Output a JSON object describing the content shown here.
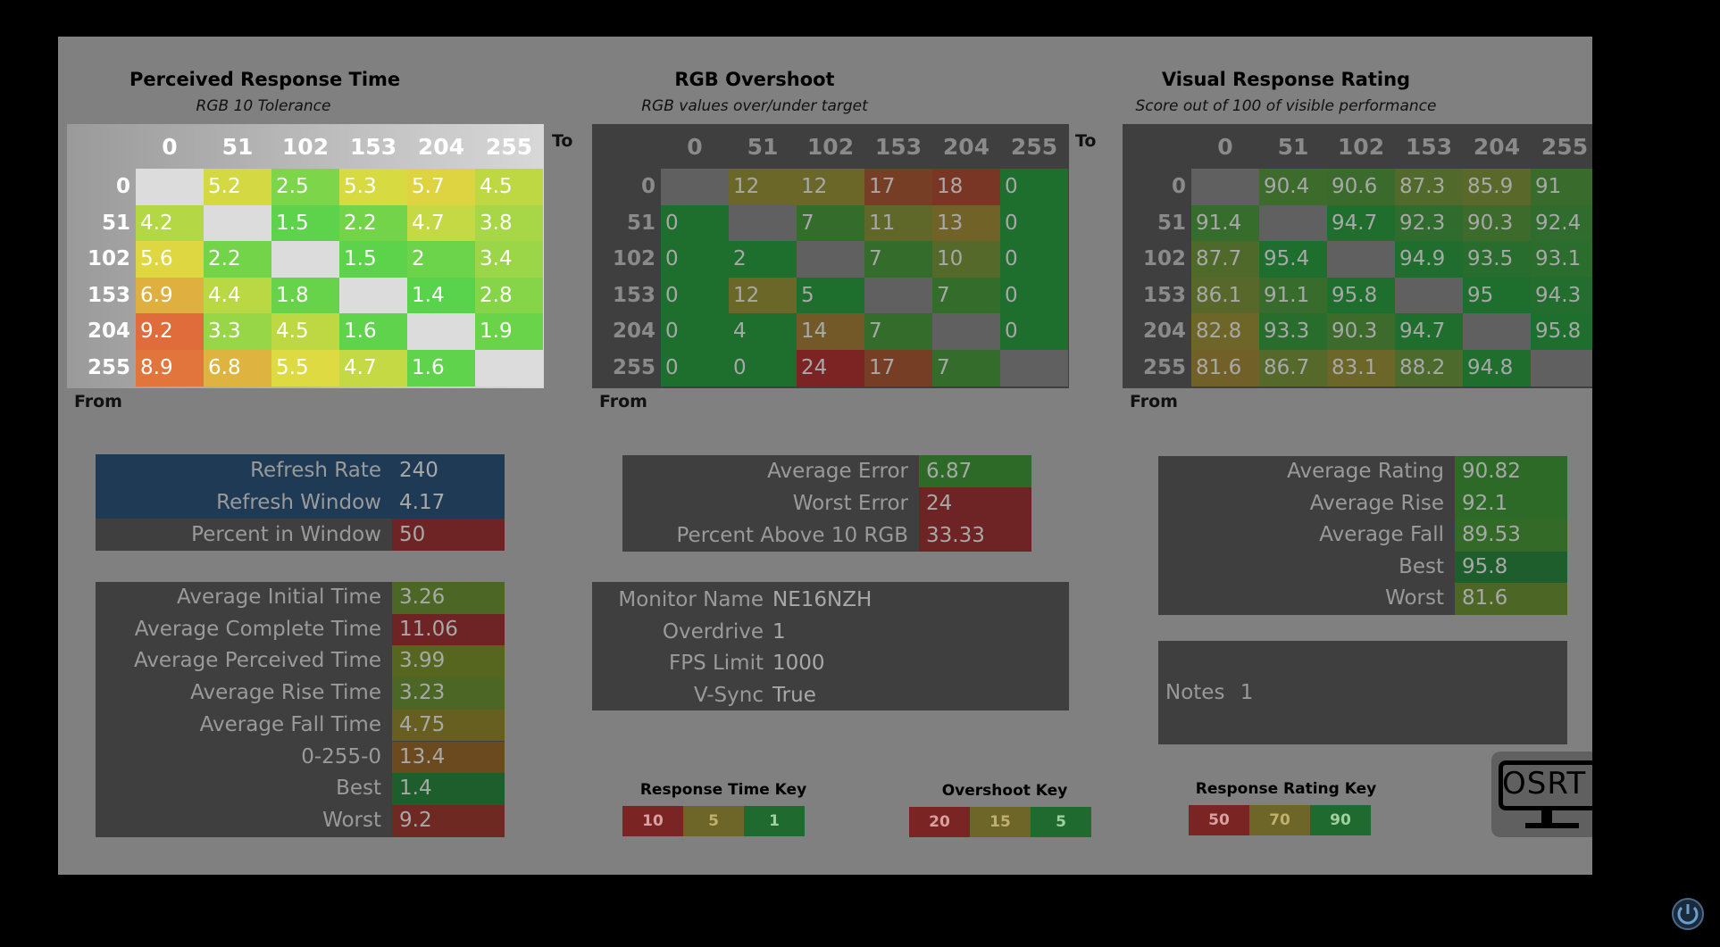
{
  "chart_data": [
    {
      "type": "heatmap",
      "title": "Perceived Response Time",
      "subtitle": "RGB 10 Tolerance",
      "xlabel": "To",
      "ylabel": "From",
      "x": [
        "0",
        "51",
        "102",
        "153",
        "204",
        "255"
      ],
      "y": [
        "0",
        "51",
        "102",
        "153",
        "204",
        "255"
      ],
      "values": [
        [
          null,
          "5.2",
          "2.5",
          "5.3",
          "5.7",
          "4.5"
        ],
        [
          "4.2",
          null,
          "1.5",
          "2.2",
          "4.7",
          "3.8"
        ],
        [
          "5.6",
          "2.2",
          null,
          "1.5",
          "2",
          "3.4"
        ],
        [
          "6.9",
          "4.4",
          "1.8",
          null,
          "1.4",
          "2.8"
        ],
        [
          "9.2",
          "3.3",
          "4.5",
          "1.6",
          null,
          "1.9"
        ],
        [
          "8.9",
          "6.8",
          "5.5",
          "4.7",
          "1.6",
          null
        ]
      ]
    },
    {
      "type": "heatmap",
      "title": "RGB Overshoot",
      "subtitle": "RGB values over/under target",
      "xlabel": "To",
      "ylabel": "From",
      "x": [
        "0",
        "51",
        "102",
        "153",
        "204",
        "255"
      ],
      "y": [
        "0",
        "51",
        "102",
        "153",
        "204",
        "255"
      ],
      "values": [
        [
          null,
          "12",
          "12",
          "17",
          "18",
          "0"
        ],
        [
          "0",
          null,
          "7",
          "11",
          "13",
          "0"
        ],
        [
          "0",
          "2",
          null,
          "7",
          "10",
          "0"
        ],
        [
          "0",
          "12",
          "5",
          null,
          "7",
          "0"
        ],
        [
          "0",
          "4",
          "14",
          "7",
          null,
          "0"
        ],
        [
          "0",
          "0",
          "24",
          "17",
          "7",
          null
        ]
      ]
    },
    {
      "type": "heatmap",
      "title": "Visual Response Rating",
      "subtitle": "Score out of 100 of visible performance",
      "xlabel": "",
      "ylabel": "From",
      "x": [
        "0",
        "51",
        "102",
        "153",
        "204",
        "255"
      ],
      "y": [
        "0",
        "51",
        "102",
        "153",
        "204",
        "255"
      ],
      "values": [
        [
          null,
          "90.4",
          "90.6",
          "87.3",
          "85.9",
          "91"
        ],
        [
          "91.4",
          null,
          "94.7",
          "92.3",
          "90.3",
          "92.4"
        ],
        [
          "87.7",
          "95.4",
          null,
          "94.9",
          "93.5",
          "93.1"
        ],
        [
          "86.1",
          "91.1",
          "95.8",
          null,
          "95",
          "94.3"
        ],
        [
          "82.8",
          "93.3",
          "90.3",
          "94.7",
          null,
          "95.8"
        ],
        [
          "81.6",
          "86.7",
          "83.1",
          "88.2",
          "94.8",
          null
        ]
      ]
    }
  ],
  "to_label_1": "To",
  "to_label_2": "To",
  "refresh": [
    {
      "label": "Refresh Rate",
      "value": "240",
      "color": "#1f3a55",
      "vcolor": "#1f3a55"
    },
    {
      "label": "Refresh Window",
      "value": "4.17",
      "color": "#1f3a55",
      "vcolor": "#1f3a55"
    },
    {
      "label": "Percent in Window",
      "value": "50",
      "color": "#3f3f3f",
      "vcolor": "#6e2424"
    }
  ],
  "times": [
    {
      "label": "Average Initial Time",
      "value": "3.26",
      "vcolor": "#4c6626"
    },
    {
      "label": "Average Complete Time",
      "value": "11.06",
      "vcolor": "#6e2424"
    },
    {
      "label": "Average Perceived Time",
      "value": "3.99",
      "vcolor": "#56661f"
    },
    {
      "label": "Average Rise Time",
      "value": "3.23",
      "vcolor": "#4c6626"
    },
    {
      "label": "Average Fall Time",
      "value": "4.75",
      "vcolor": "#675f1f"
    },
    {
      "label": "0-255-0",
      "value": "13.4",
      "vcolor": "#6a4a1e"
    },
    {
      "label": "Best",
      "value": "1.4",
      "vcolor": "#1e5e2c"
    },
    {
      "label": "Worst",
      "value": "9.2",
      "vcolor": "#6e2a22"
    }
  ],
  "errors": [
    {
      "label": "Average Error",
      "value": "6.87",
      "vcolor": "#2d6a28"
    },
    {
      "label": "Worst Error",
      "value": "24",
      "vcolor": "#6e2424"
    },
    {
      "label": "Percent Above 10 RGB",
      "value": "33.33",
      "vcolor": "#6e2424"
    }
  ],
  "monitor": [
    {
      "label": "Monitor Name",
      "value": "NE16NZH"
    },
    {
      "label": "Overdrive",
      "value": "1"
    },
    {
      "label": "FPS Limit",
      "value": "1000"
    },
    {
      "label": "V-Sync",
      "value": "True"
    }
  ],
  "ratings": [
    {
      "label": "Average Rating",
      "value": "90.82",
      "vcolor": "#2d6a28"
    },
    {
      "label": "Average Rise",
      "value": "92.1",
      "vcolor": "#2d6a28"
    },
    {
      "label": "Average Fall",
      "value": "89.53",
      "vcolor": "#336a28"
    },
    {
      "label": "Best",
      "value": "95.8",
      "vcolor": "#1e5e2c"
    },
    {
      "label": "Worst",
      "value": "81.6",
      "vcolor": "#4c6626"
    }
  ],
  "notes": {
    "label": "Notes",
    "value": "1"
  },
  "keys": [
    {
      "title": "Response Time Key",
      "cells": [
        {
          "v": "10",
          "c": "#7a2424",
          "t": "#d8a0a0"
        },
        {
          "v": "5",
          "c": "#6e6628",
          "t": "#c0b070"
        },
        {
          "v": "1",
          "c": "#1f6a2e",
          "t": "#a0d0a0"
        }
      ]
    },
    {
      "title": "Overshoot Key",
      "cells": [
        {
          "v": "20",
          "c": "#7a2424",
          "t": "#d8a0a0"
        },
        {
          "v": "15",
          "c": "#6e6628",
          "t": "#c0b070"
        },
        {
          "v": "5",
          "c": "#1f6a2e",
          "t": "#a0d0a0"
        }
      ]
    },
    {
      "title": "Response Rating Key",
      "cells": [
        {
          "v": "50",
          "c": "#7a2424",
          "t": "#d8a0a0"
        },
        {
          "v": "70",
          "c": "#6e6628",
          "t": "#c0b070"
        },
        {
          "v": "90",
          "c": "#1f6a2e",
          "t": "#a0d0a0"
        }
      ]
    }
  ],
  "logo_text": "OSRT"
}
